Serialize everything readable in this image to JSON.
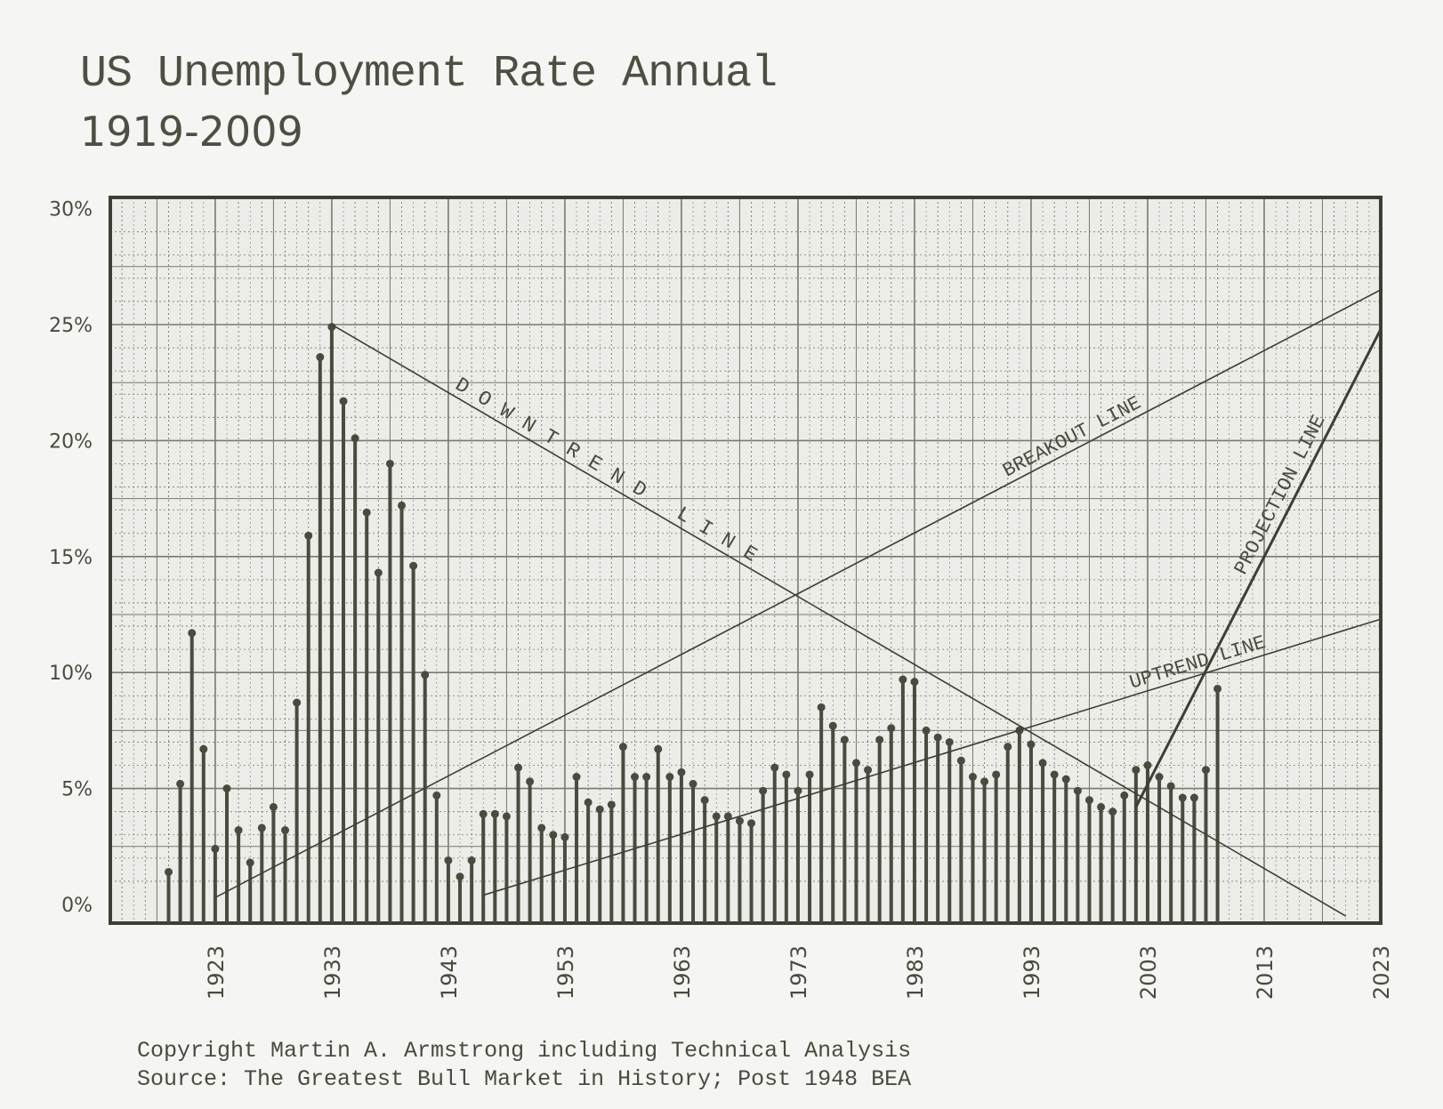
{
  "header": {
    "title": "US Unemployment Rate Annual",
    "subtitle": "1919-2009"
  },
  "footer": {
    "line1": "Copyright Martin A. Armstrong including Technical Analysis",
    "line2": "Source: The Greatest Bull Market in History; Post 1948 BEA"
  },
  "colors": {
    "ink": "#4a4a3e",
    "grid": "#7a7a70",
    "background": "#f5f5f3"
  },
  "chart_data": {
    "type": "bar",
    "title": "US Unemployment Rate Annual",
    "subtitle": "1919-2009",
    "xlabel": "",
    "ylabel": "",
    "xlim": [
      1914,
      2023
    ],
    "ylim": [
      0,
      30
    ],
    "grid": true,
    "yticks": [
      {
        "value": 0,
        "label": "0%"
      },
      {
        "value": 5,
        "label": "5%"
      },
      {
        "value": 10,
        "label": "10%"
      },
      {
        "value": 15,
        "label": "15%"
      },
      {
        "value": 20,
        "label": "20%"
      },
      {
        "value": 25,
        "label": "25%"
      },
      {
        "value": 30,
        "label": "30%"
      }
    ],
    "xticks": [
      {
        "value": 1923,
        "label": "1923"
      },
      {
        "value": 1933,
        "label": "1933"
      },
      {
        "value": 1943,
        "label": "1943"
      },
      {
        "value": 1953,
        "label": "1953"
      },
      {
        "value": 1963,
        "label": "1963"
      },
      {
        "value": 1973,
        "label": "1973"
      },
      {
        "value": 1983,
        "label": "1983"
      },
      {
        "value": 1993,
        "label": "1993"
      },
      {
        "value": 2003,
        "label": "2003"
      },
      {
        "value": 2013,
        "label": "2013"
      },
      {
        "value": 2023,
        "label": "2023"
      }
    ],
    "series": [
      {
        "x": [
          1919,
          1920,
          1921,
          1922,
          1923,
          1924,
          1925,
          1926,
          1927,
          1928,
          1929,
          1930,
          1931,
          1932,
          1933,
          1934,
          1935,
          1936,
          1937,
          1938,
          1939,
          1940,
          1941,
          1942,
          1943,
          1944,
          1945,
          1946,
          1947,
          1948,
          1949,
          1950,
          1951,
          1952,
          1953,
          1954,
          1955,
          1956,
          1957,
          1958,
          1959,
          1960,
          1961,
          1962,
          1963,
          1964,
          1965,
          1966,
          1967,
          1968,
          1969,
          1970,
          1971,
          1972,
          1973,
          1974,
          1975,
          1976,
          1977,
          1978,
          1979,
          1980,
          1981,
          1982,
          1983,
          1984,
          1985,
          1986,
          1987,
          1988,
          1989,
          1990,
          1991,
          1992,
          1993,
          1994,
          1995,
          1996,
          1997,
          1998,
          1999,
          2000,
          2001,
          2002,
          2003,
          2004,
          2005,
          2006,
          2007,
          2008,
          2009
        ],
        "values": [
          1.4,
          5.2,
          11.7,
          6.7,
          2.4,
          5.0,
          3.2,
          1.8,
          3.3,
          4.2,
          3.2,
          8.7,
          15.9,
          23.6,
          24.9,
          21.7,
          20.1,
          16.9,
          14.3,
          19.0,
          17.2,
          14.6,
          9.9,
          4.7,
          1.9,
          1.2,
          1.9,
          3.9,
          3.9,
          3.8,
          5.9,
          5.3,
          3.3,
          3.0,
          2.9,
          5.5,
          4.4,
          4.1,
          4.3,
          6.8,
          5.5,
          5.5,
          6.7,
          5.5,
          5.7,
          5.2,
          4.5,
          3.8,
          3.8,
          3.6,
          3.5,
          4.9,
          5.9,
          5.6,
          4.9,
          5.6,
          8.5,
          7.7,
          7.1,
          6.1,
          5.8,
          7.1,
          7.6,
          9.7,
          9.6,
          7.5,
          7.2,
          7.0,
          6.2,
          5.5,
          5.3,
          5.6,
          6.8,
          7.5,
          6.9,
          6.1,
          5.6,
          5.4,
          4.9,
          4.5,
          4.2,
          4.0,
          4.7,
          5.8,
          6.0,
          5.5,
          5.1,
          4.6,
          4.6,
          5.8,
          9.3
        ]
      }
    ],
    "annotations": [
      {
        "label": "DOWNTREND LINE",
        "from": [
          1933,
          25.0
        ],
        "to": [
          2020,
          -0.5
        ]
      },
      {
        "label": "BREAKOUT LINE",
        "from": [
          1923,
          0.3
        ],
        "to": [
          2023,
          26.5
        ]
      },
      {
        "label": "UPTREND LINE",
        "from": [
          1946,
          0.4
        ],
        "to": [
          2023,
          12.3
        ]
      },
      {
        "label": "PROJECTION LINE",
        "from": [
          2002,
          4.2
        ],
        "to": [
          2023,
          24.8
        ]
      }
    ]
  }
}
